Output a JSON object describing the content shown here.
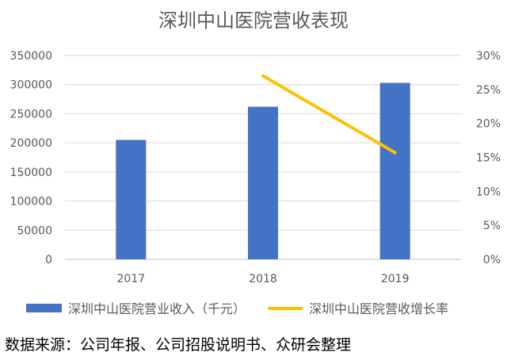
{
  "source_note": "数据来源：公司年报、公司招股说明书、众研会整理",
  "chart_data": {
    "type": "bar",
    "title": "深圳中山医院营收表现",
    "categories": [
      "2017",
      "2018",
      "2019"
    ],
    "series": [
      {
        "name": "深圳中山医院营业收入（千元）",
        "type": "bar",
        "axis": "left",
        "values": [
          205000,
          262000,
          303000
        ],
        "color": "#4472C4"
      },
      {
        "name": "深圳中山医院营收增长率",
        "type": "line",
        "axis": "right",
        "values": [
          null,
          0.27,
          0.157
        ],
        "color": "#FFC000"
      }
    ],
    "y_left": {
      "lim": [
        0,
        350000
      ],
      "ticks": [
        "0",
        "50000",
        "100000",
        "150000",
        "200000",
        "250000",
        "300000",
        "350000"
      ]
    },
    "y_right": {
      "lim": [
        0,
        0.3
      ],
      "ticks": [
        "0%",
        "5%",
        "10%",
        "15%",
        "20%",
        "25%",
        "30%"
      ]
    },
    "grid": true,
    "legend": "bottom"
  }
}
